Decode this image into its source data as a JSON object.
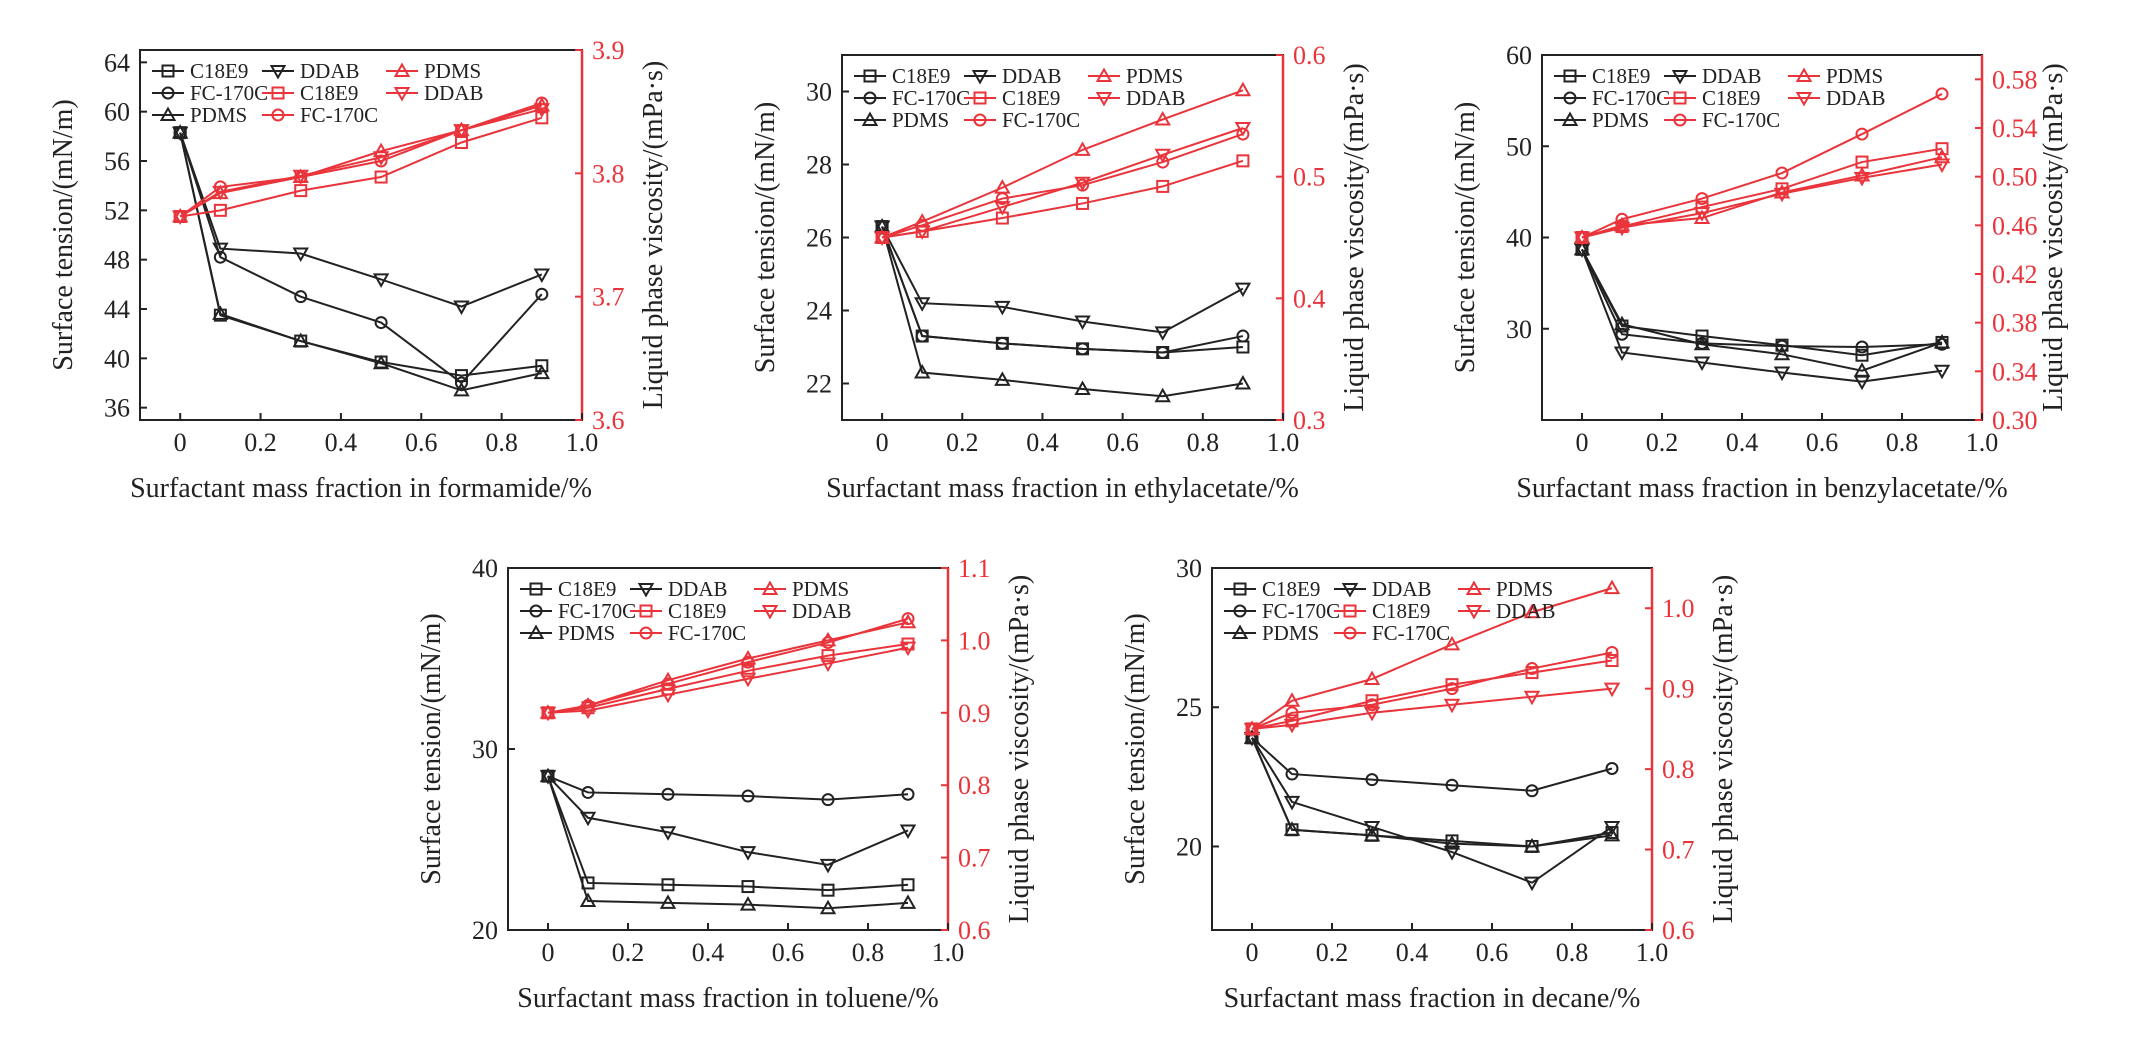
{
  "colors": {
    "black": "#222222",
    "red": "#e8343a"
  },
  "chart_data": [
    {
      "type": "line",
      "xlabel": "Surfactant mass fraction in formamide/%",
      "ylabel_left": "Surface tension/(mN/m)",
      "ylabel_right": "Liquid phase viscosity/(mPa·s)",
      "x": [
        0,
        0.1,
        0.3,
        0.5,
        0.7,
        0.9
      ],
      "xlim": [
        -0.1,
        1.0
      ],
      "xticks": [
        0,
        0.2,
        0.4,
        0.6,
        0.8,
        1.0
      ],
      "xtick_labels": [
        "0",
        "0.2",
        "0.4",
        "0.6",
        "0.8",
        "1.0"
      ],
      "ylim_left": [
        35,
        65
      ],
      "yticks_left": [
        36,
        40,
        44,
        48,
        52,
        56,
        60,
        64
      ],
      "ytick_labels_left": [
        "36",
        "40",
        "44",
        "48",
        "52",
        "56",
        "60",
        "64"
      ],
      "ylim_right": [
        3.6,
        3.9
      ],
      "yticks_right": [
        3.6,
        3.7,
        3.8,
        3.9
      ],
      "ytick_labels_right": [
        "3.6",
        "3.7",
        "3.8",
        "3.9"
      ],
      "legend": [
        {
          "label": "C18E9",
          "marker": "square",
          "axis": "left"
        },
        {
          "label": "DDAB",
          "marker": "tri_down",
          "axis": "left"
        },
        {
          "label": "PDMS",
          "marker": "tri_up",
          "axis": "right"
        },
        {
          "label": "FC-170C",
          "marker": "circle",
          "axis": "left"
        },
        {
          "label": "C18E9",
          "marker": "square",
          "axis": "right"
        },
        {
          "label": "DDAB",
          "marker": "tri_down",
          "axis": "right"
        },
        {
          "label": "PDMS",
          "marker": "tri_up",
          "axis": "left"
        },
        {
          "label": "FC-170C",
          "marker": "circle",
          "axis": "right"
        }
      ],
      "series_left": [
        {
          "label": "C18E9",
          "marker": "square",
          "values": [
            58.3,
            43.5,
            41.4,
            39.7,
            38.6,
            39.4
          ]
        },
        {
          "label": "DDAB",
          "marker": "tri_down",
          "values": [
            58.3,
            48.9,
            48.5,
            46.4,
            44.2,
            46.8
          ]
        },
        {
          "label": "FC-170C",
          "marker": "circle",
          "values": [
            58.3,
            48.2,
            45.0,
            42.9,
            38.0,
            45.2
          ]
        },
        {
          "label": "PDMS",
          "marker": "tri_up",
          "values": [
            58.3,
            43.6,
            41.4,
            39.6,
            37.4,
            38.8
          ]
        }
      ],
      "series_right": [
        {
          "label": "C18E9",
          "marker": "square",
          "values": [
            3.765,
            3.77,
            3.786,
            3.797,
            3.825,
            3.845
          ]
        },
        {
          "label": "DDAB",
          "marker": "tri_down",
          "values": [
            3.765,
            3.785,
            3.798,
            3.813,
            3.835,
            3.852
          ]
        },
        {
          "label": "PDMS",
          "marker": "tri_up",
          "values": [
            3.765,
            3.784,
            3.797,
            3.818,
            3.835,
            3.855
          ]
        },
        {
          "label": "FC-170C",
          "marker": "circle",
          "values": [
            3.765,
            3.789,
            3.797,
            3.81,
            3.835,
            3.857
          ]
        }
      ]
    },
    {
      "type": "line",
      "xlabel": "Surfactant mass fraction in ethylacetate/%",
      "ylabel_left": "Surface tension/(mN/m)",
      "ylabel_right": "Liquid phase viscosity/(mPa·s)",
      "x": [
        0,
        0.1,
        0.3,
        0.5,
        0.7,
        0.9
      ],
      "xlim": [
        -0.1,
        1.0
      ],
      "xticks": [
        0,
        0.2,
        0.4,
        0.6,
        0.8,
        1.0
      ],
      "xtick_labels": [
        "0",
        "0.2",
        "0.4",
        "0.6",
        "0.8",
        "1.0"
      ],
      "ylim_left": [
        21,
        31
      ],
      "yticks_left": [
        22,
        24,
        26,
        28,
        30
      ],
      "ytick_labels_left": [
        "22",
        "24",
        "26",
        "28",
        "30"
      ],
      "ylim_right": [
        0.3,
        0.6
      ],
      "yticks_right": [
        0.3,
        0.4,
        0.5,
        0.6
      ],
      "ytick_labels_right": [
        "0.3",
        "0.4",
        "0.5",
        "0.6"
      ],
      "legend": [
        {
          "label": "C18E9",
          "marker": "square",
          "axis": "left"
        },
        {
          "label": "DDAB",
          "marker": "tri_down",
          "axis": "left"
        },
        {
          "label": "PDMS",
          "marker": "tri_up",
          "axis": "right"
        },
        {
          "label": "FC-170C",
          "marker": "circle",
          "axis": "left"
        },
        {
          "label": "C18E9",
          "marker": "square",
          "axis": "right"
        },
        {
          "label": "DDAB",
          "marker": "tri_down",
          "axis": "right"
        },
        {
          "label": "PDMS",
          "marker": "tri_up",
          "axis": "left"
        },
        {
          "label": "FC-170C",
          "marker": "circle",
          "axis": "right"
        }
      ],
      "series_left": [
        {
          "label": "C18E9",
          "marker": "square",
          "values": [
            26.3,
            23.3,
            23.1,
            22.95,
            22.85,
            23.0
          ]
        },
        {
          "label": "DDAB",
          "marker": "tri_down",
          "values": [
            26.3,
            24.2,
            24.1,
            23.7,
            23.4,
            24.6
          ]
        },
        {
          "label": "FC-170C",
          "marker": "circle",
          "values": [
            26.3,
            23.3,
            23.1,
            22.95,
            22.85,
            23.3
          ]
        },
        {
          "label": "PDMS",
          "marker": "tri_up",
          "values": [
            26.3,
            22.3,
            22.1,
            21.85,
            21.65,
            22.0
          ]
        }
      ],
      "series_right": [
        {
          "label": "C18E9",
          "marker": "square",
          "values": [
            0.45,
            0.455,
            0.466,
            0.478,
            0.492,
            0.513
          ]
        },
        {
          "label": "DDAB",
          "marker": "tri_down",
          "values": [
            0.45,
            0.455,
            0.475,
            0.495,
            0.518,
            0.54
          ]
        },
        {
          "label": "PDMS",
          "marker": "tri_up",
          "values": [
            0.45,
            0.463,
            0.491,
            0.522,
            0.547,
            0.571
          ]
        },
        {
          "label": "FC-170C",
          "marker": "circle",
          "values": [
            0.45,
            0.46,
            0.482,
            0.493,
            0.512,
            0.535
          ]
        }
      ]
    },
    {
      "type": "line",
      "xlabel": "Surfactant mass fraction in benzylacetate/%",
      "ylabel_left": "Surface tension/(mN/m)",
      "ylabel_right": "Liquid phase viscosity/(mPa·s)",
      "x": [
        0,
        0.1,
        0.3,
        0.5,
        0.7,
        0.9
      ],
      "xlim": [
        -0.1,
        1.0
      ],
      "xticks": [
        0,
        0.2,
        0.4,
        0.6,
        0.8,
        1.0
      ],
      "xtick_labels": [
        "0",
        "0.2",
        "0.4",
        "0.6",
        "0.8",
        "1.0"
      ],
      "ylim_left": [
        20,
        60
      ],
      "yticks_left": [
        30,
        40,
        50,
        60
      ],
      "ytick_labels_left": [
        "30",
        "40",
        "50",
        "60"
      ],
      "ylim_right": [
        0.3,
        0.6
      ],
      "yticks_right": [
        0.3,
        0.34,
        0.38,
        0.42,
        0.46,
        0.5,
        0.54,
        0.58
      ],
      "ytick_labels_right": [
        "0.30",
        "0.34",
        "0.38",
        "0.42",
        "0.46",
        "0.50",
        "0.54",
        "0.58"
      ],
      "legend": [
        {
          "label": "C18E9",
          "marker": "square",
          "axis": "left"
        },
        {
          "label": "DDAB",
          "marker": "tri_down",
          "axis": "left"
        },
        {
          "label": "PDMS",
          "marker": "tri_up",
          "axis": "right"
        },
        {
          "label": "FC-170C",
          "marker": "circle",
          "axis": "left"
        },
        {
          "label": "C18E9",
          "marker": "square",
          "axis": "right"
        },
        {
          "label": "DDAB",
          "marker": "tri_down",
          "axis": "right"
        },
        {
          "label": "PDMS",
          "marker": "tri_up",
          "axis": "left"
        },
        {
          "label": "FC-170C",
          "marker": "circle",
          "axis": "right"
        }
      ],
      "series_left": [
        {
          "label": "C18E9",
          "marker": "square",
          "values": [
            38.7,
            30.3,
            29.2,
            28.2,
            27.1,
            28.5
          ]
        },
        {
          "label": "DDAB",
          "marker": "tri_down",
          "values": [
            38.7,
            27.4,
            26.3,
            25.2,
            24.2,
            25.4
          ]
        },
        {
          "label": "FC-170C",
          "marker": "circle",
          "values": [
            38.7,
            29.4,
            28.4,
            28.1,
            28.0,
            28.3
          ]
        },
        {
          "label": "PDMS",
          "marker": "tri_up",
          "values": [
            38.7,
            30.5,
            28.3,
            27.2,
            25.4,
            28.5
          ]
        }
      ],
      "series_right": [
        {
          "label": "C18E9",
          "marker": "square",
          "values": [
            0.45,
            0.459,
            0.475,
            0.49,
            0.512,
            0.523
          ]
        },
        {
          "label": "DDAB",
          "marker": "tri_down",
          "values": [
            0.45,
            0.458,
            0.47,
            0.486,
            0.499,
            0.51
          ]
        },
        {
          "label": "PDMS",
          "marker": "tri_up",
          "values": [
            0.45,
            0.46,
            0.466,
            0.487,
            0.501,
            0.516
          ]
        },
        {
          "label": "FC-170C",
          "marker": "circle",
          "values": [
            0.45,
            0.465,
            0.482,
            0.503,
            0.535,
            0.568
          ]
        }
      ]
    },
    {
      "type": "line",
      "xlabel": "Surfactant mass fraction in toluene/%",
      "ylabel_left": "Surface tension/(mN/m)",
      "ylabel_right": "Liquid phase viscosity/(mPa·s)",
      "x": [
        0,
        0.1,
        0.3,
        0.5,
        0.7,
        0.9
      ],
      "xlim": [
        -0.1,
        1.0
      ],
      "xticks": [
        0,
        0.2,
        0.4,
        0.6,
        0.8,
        1.0
      ],
      "xtick_labels": [
        "0",
        "0.2",
        "0.4",
        "0.6",
        "0.8",
        "1.0"
      ],
      "ylim_left": [
        20,
        40
      ],
      "yticks_left": [
        20,
        30,
        40
      ],
      "ytick_labels_left": [
        "20",
        "30",
        "40"
      ],
      "ylim_right": [
        0.6,
        1.1
      ],
      "yticks_right": [
        0.6,
        0.7,
        0.8,
        0.9,
        1.0,
        1.1
      ],
      "ytick_labels_right": [
        "0.6",
        "0.7",
        "0.8",
        "0.9",
        "1.0",
        "1.1"
      ],
      "legend": [
        {
          "label": "C18E9",
          "marker": "square",
          "axis": "left"
        },
        {
          "label": "DDAB",
          "marker": "tri_down",
          "axis": "left"
        },
        {
          "label": "PDMS",
          "marker": "tri_up",
          "axis": "right"
        },
        {
          "label": "FC-170C",
          "marker": "circle",
          "axis": "left"
        },
        {
          "label": "C18E9",
          "marker": "square",
          "axis": "right"
        },
        {
          "label": "DDAB",
          "marker": "tri_down",
          "axis": "right"
        },
        {
          "label": "PDMS",
          "marker": "tri_up",
          "axis": "left"
        },
        {
          "label": "FC-170C",
          "marker": "circle",
          "axis": "right"
        }
      ],
      "series_left": [
        {
          "label": "C18E9",
          "marker": "square",
          "values": [
            28.5,
            22.6,
            22.5,
            22.4,
            22.2,
            22.5
          ]
        },
        {
          "label": "DDAB",
          "marker": "tri_down",
          "values": [
            28.5,
            26.2,
            25.4,
            24.3,
            23.6,
            25.5
          ]
        },
        {
          "label": "FC-170C",
          "marker": "circle",
          "values": [
            28.5,
            27.6,
            27.5,
            27.4,
            27.2,
            27.5
          ]
        },
        {
          "label": "PDMS",
          "marker": "tri_up",
          "values": [
            28.5,
            21.6,
            21.5,
            21.4,
            21.2,
            21.5
          ]
        }
      ],
      "series_right": [
        {
          "label": "C18E9",
          "marker": "square",
          "values": [
            0.9,
            0.907,
            0.933,
            0.958,
            0.979,
            0.995
          ]
        },
        {
          "label": "DDAB",
          "marker": "tri_down",
          "values": [
            0.9,
            0.903,
            0.925,
            0.947,
            0.968,
            0.99
          ]
        },
        {
          "label": "PDMS",
          "marker": "tri_up",
          "values": [
            0.9,
            0.91,
            0.945,
            0.975,
            1.0,
            1.025
          ]
        },
        {
          "label": "FC-170C",
          "marker": "circle",
          "values": [
            0.9,
            0.91,
            0.94,
            0.97,
            0.997,
            1.03
          ]
        }
      ]
    },
    {
      "type": "line",
      "xlabel": "Surfactant mass fraction in decane/%",
      "ylabel_left": "Surface tension/(mN/m)",
      "ylabel_right": "Liquid phase viscosity/(mPa·s)",
      "x": [
        0,
        0.1,
        0.3,
        0.5,
        0.7,
        0.9
      ],
      "xlim": [
        -0.1,
        1.0
      ],
      "xticks": [
        0,
        0.2,
        0.4,
        0.6,
        0.8,
        1.0
      ],
      "xtick_labels": [
        "0",
        "0.2",
        "0.4",
        "0.6",
        "0.8",
        "1.0"
      ],
      "ylim_left": [
        17,
        30
      ],
      "yticks_left": [
        20,
        25,
        30
      ],
      "ytick_labels_left": [
        "20",
        "25",
        "30"
      ],
      "ylim_right": [
        0.6,
        1.05
      ],
      "yticks_right": [
        0.6,
        0.7,
        0.8,
        0.9,
        1.0
      ],
      "ytick_labels_right": [
        "0.6",
        "0.7",
        "0.8",
        "0.9",
        "1.0"
      ],
      "legend": [
        {
          "label": "C18E9",
          "marker": "square",
          "axis": "left"
        },
        {
          "label": "DDAB",
          "marker": "tri_down",
          "axis": "left"
        },
        {
          "label": "PDMS",
          "marker": "tri_up",
          "axis": "right"
        },
        {
          "label": "FC-170C",
          "marker": "circle",
          "axis": "left"
        },
        {
          "label": "C18E9",
          "marker": "square",
          "axis": "right"
        },
        {
          "label": "DDAB",
          "marker": "tri_down",
          "axis": "right"
        },
        {
          "label": "PDMS",
          "marker": "tri_up",
          "axis": "left"
        },
        {
          "label": "FC-170C",
          "marker": "circle",
          "axis": "right"
        }
      ],
      "series_left": [
        {
          "label": "C18E9",
          "marker": "square",
          "values": [
            23.9,
            20.6,
            20.4,
            20.2,
            20.0,
            20.5
          ]
        },
        {
          "label": "DDAB",
          "marker": "tri_down",
          "values": [
            23.9,
            21.6,
            20.7,
            19.8,
            18.7,
            20.7
          ]
        },
        {
          "label": "FC-170C",
          "marker": "circle",
          "values": [
            23.9,
            22.6,
            22.4,
            22.2,
            22.0,
            22.8
          ]
        },
        {
          "label": "PDMS",
          "marker": "tri_up",
          "values": [
            23.9,
            20.6,
            20.4,
            20.1,
            20.0,
            20.4
          ]
        }
      ],
      "series_right": [
        {
          "label": "C18E9",
          "marker": "square",
          "values": [
            0.85,
            0.86,
            0.885,
            0.905,
            0.92,
            0.935
          ]
        },
        {
          "label": "DDAB",
          "marker": "tri_down",
          "values": [
            0.85,
            0.855,
            0.87,
            0.88,
            0.89,
            0.9
          ]
        },
        {
          "label": "PDMS",
          "marker": "tri_up",
          "values": [
            0.85,
            0.885,
            0.912,
            0.955,
            0.995,
            1.025
          ]
        },
        {
          "label": "FC-170C",
          "marker": "circle",
          "values": [
            0.85,
            0.87,
            0.88,
            0.9,
            0.925,
            0.945
          ]
        }
      ]
    }
  ]
}
